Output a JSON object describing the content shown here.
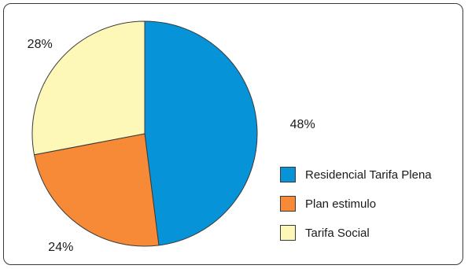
{
  "chart_data": {
    "type": "pie",
    "title": "",
    "slices": [
      {
        "label": "Residencial Tarifa Plena",
        "value": 48,
        "display": "48%",
        "color": "#0693d8"
      },
      {
        "label": "Plan estimulo",
        "value": 24,
        "display": "24%",
        "color": "#f68a37"
      },
      {
        "label": "Tarifa Social",
        "value": 28,
        "display": "28%",
        "color": "#fef8b8"
      }
    ],
    "start_angle_deg": 0,
    "direction": "clockwise",
    "legend_position": "right"
  }
}
